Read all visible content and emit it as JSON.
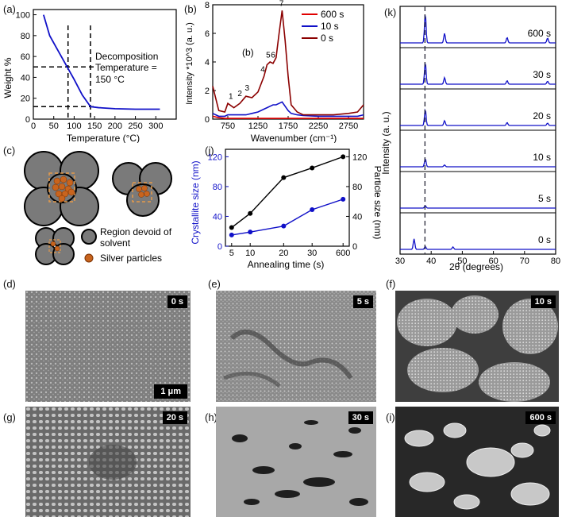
{
  "colors": {
    "blue": "#1010c8",
    "darkred": "#8b0000",
    "red": "#e00000",
    "black": "#000000",
    "copper": "#c8641e",
    "gray": "#7a7a7a"
  },
  "panel_a": {
    "label": "(a)",
    "annotation_line1": "Decomposition",
    "annotation_line2": "Temperature =",
    "annotation_line3": "150 °C",
    "chart_data": {
      "type": "line",
      "xlabel": "Temperature (°C)",
      "ylabel": "Weight %",
      "xlim": [
        0,
        350
      ],
      "ylim": [
        0,
        105
      ],
      "xticks": [
        "0",
        "50",
        "100",
        "150",
        "200",
        "250",
        "300"
      ],
      "yticks": [
        "0",
        "20",
        "40",
        "60",
        "80",
        "100"
      ],
      "x": [
        25,
        40,
        60,
        80,
        100,
        120,
        140,
        160,
        200,
        250,
        310
      ],
      "y": [
        100,
        80,
        66,
        52,
        38,
        23,
        12,
        11,
        10,
        9.5,
        9.5
      ],
      "dashed_vertical_x": [
        85,
        140
      ],
      "dashed_horizontal_y": [
        50,
        12
      ]
    }
  },
  "panel_b": {
    "label": "(b)",
    "inner_label": "(b)",
    "peak_labels": [
      "1",
      "2",
      "3",
      "4",
      "5",
      "6",
      "7"
    ],
    "chart_data": {
      "type": "line",
      "xlabel": "Wavenumber (cm⁻¹)",
      "ylabel": "Intensity *10^3 (a. u.)",
      "xlim": [
        500,
        3000
      ],
      "ylim": [
        0,
        8
      ],
      "xticks": [
        "750",
        "1250",
        "1750",
        "2250",
        "2750"
      ],
      "yticks": [
        "0",
        "2",
        "4",
        "6",
        "8"
      ],
      "x": [
        500,
        600,
        700,
        750,
        850,
        950,
        1050,
        1150,
        1250,
        1350,
        1400,
        1450,
        1500,
        1550,
        1600,
        1650,
        1700,
        1750,
        1800,
        1900,
        2000,
        2250,
        2500,
        2750,
        2900,
        3000
      ],
      "series": [
        {
          "name": "600 s",
          "values": [
            0.2,
            0.1,
            0.05,
            0.05,
            0.05,
            0.05,
            0.05,
            0.05,
            0.05,
            0.05,
            0.05,
            0.05,
            0.05,
            0.05,
            0.05,
            0.05,
            0.05,
            0.05,
            0.05,
            0.05,
            0.05,
            0.05,
            0.05,
            0.05,
            0.05,
            0.05
          ]
        },
        {
          "name": "10 s",
          "values": [
            0.4,
            0.2,
            0.2,
            0.3,
            0.3,
            0.3,
            0.3,
            0.4,
            0.5,
            0.7,
            0.8,
            0.9,
            1.0,
            1.0,
            1.1,
            1.2,
            0.9,
            0.6,
            0.4,
            0.3,
            0.25,
            0.2,
            0.2,
            0.2,
            0.2,
            0.3
          ]
        },
        {
          "name": "0 s",
          "values": [
            2.3,
            0.6,
            0.5,
            1.1,
            0.8,
            1.1,
            1.6,
            1.5,
            1.9,
            3.0,
            3.8,
            4.0,
            3.9,
            4.3,
            6.0,
            7.6,
            5.5,
            3.0,
            1.0,
            0.5,
            0.3,
            0.3,
            0.3,
            0.4,
            0.5,
            1.0
          ]
        }
      ]
    }
  },
  "panel_c": {
    "label": "(c)",
    "legend_gray_line1": "Region devoid of",
    "legend_gray_line2": "solvent",
    "legend_silver": "Silver particles"
  },
  "panel_j": {
    "label": "(j)",
    "chart_data": {
      "type": "line",
      "xlabel": "Annealing time (s)",
      "ylabel_left": "Crystallite size (nm)",
      "ylabel_right": "Particle size (nm)",
      "categories": [
        "5",
        "10",
        "20",
        "30",
        "600"
      ],
      "yticks_left": [
        "0",
        "40",
        "80",
        "120"
      ],
      "yticks_right": [
        "0",
        "40",
        "80",
        "120"
      ],
      "series": [
        {
          "name": "Particle size (nm)",
          "values": [
            25,
            44,
            92,
            105,
            120
          ]
        },
        {
          "name": "Crystallite size (nm)",
          "values": [
            15,
            19,
            27,
            49,
            63
          ]
        }
      ]
    }
  },
  "panel_k": {
    "label": "(k)",
    "chart_data": {
      "type": "line",
      "xlabel": "2θ (degrees)",
      "ylabel": "Intensity (a. u.)",
      "xlim": [
        30,
        80
      ],
      "xticks": [
        "30",
        "40",
        "50",
        "60",
        "70",
        "80"
      ],
      "dashed_x": 38,
      "series": [
        {
          "name": "600 s",
          "peaks": [
            [
              38.1,
              1.0
            ],
            [
              44.3,
              0.32
            ],
            [
              64.4,
              0.18
            ],
            [
              77.4,
              0.16
            ]
          ]
        },
        {
          "name": "30 s",
          "peaks": [
            [
              38.1,
              0.75
            ],
            [
              44.3,
              0.22
            ],
            [
              64.4,
              0.12
            ],
            [
              77.4,
              0.1
            ]
          ]
        },
        {
          "name": "20 s",
          "peaks": [
            [
              38.1,
              0.55
            ],
            [
              44.3,
              0.16
            ],
            [
              64.4,
              0.1
            ],
            [
              77.4,
              0.08
            ]
          ]
        },
        {
          "name": "10 s",
          "peaks": [
            [
              38.1,
              0.28
            ],
            [
              44.3,
              0.06
            ]
          ]
        },
        {
          "name": "5 s",
          "peaks": [
            [
              38.1,
              0.08
            ]
          ]
        },
        {
          "name": "0 s",
          "peaks": [
            [
              34.5,
              0.35
            ],
            [
              38.1,
              0.1
            ],
            [
              47.0,
              0.08
            ]
          ]
        }
      ]
    }
  },
  "sem": {
    "d": {
      "label": "(d)",
      "tag": "0 s",
      "scale": "1 μm"
    },
    "e": {
      "label": "(e)",
      "tag": "5 s"
    },
    "f": {
      "label": "(f)",
      "tag": "10 s"
    },
    "g": {
      "label": "(g)",
      "tag": "20 s"
    },
    "h": {
      "label": "(h)",
      "tag": "30 s"
    },
    "i": {
      "label": "(i)",
      "tag": "600 s"
    }
  }
}
